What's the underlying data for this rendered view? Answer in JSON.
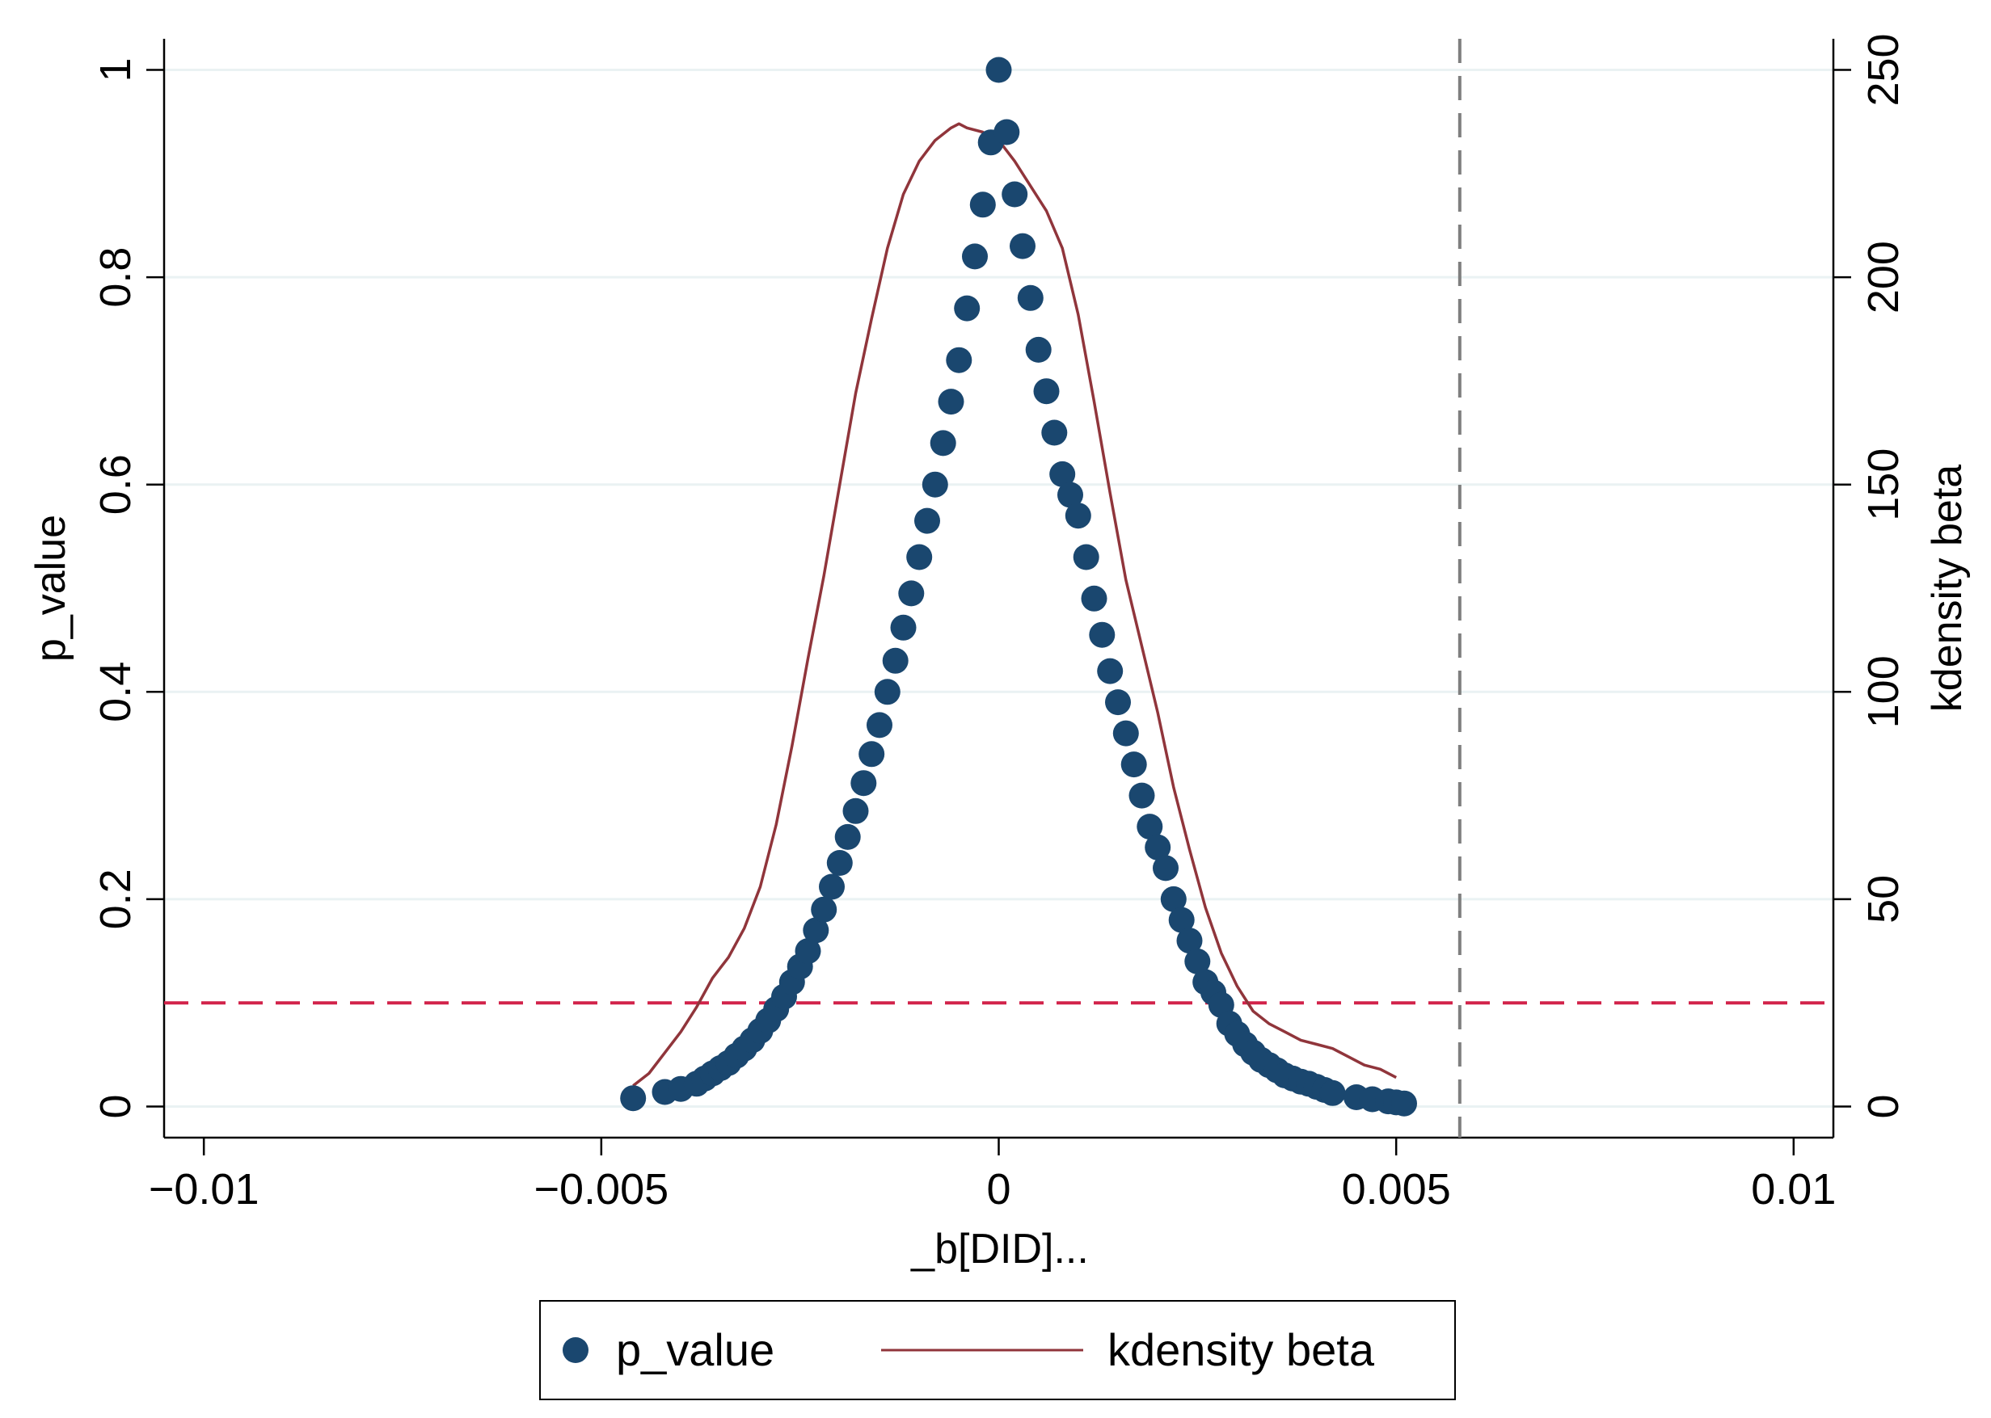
{
  "chart_data": {
    "type": "scatter",
    "title": "",
    "xlabel": "_b[DID]...",
    "ylabel_left": "p_value",
    "ylabel_right": "kdensity beta",
    "xlim": [
      -0.0105,
      0.0105
    ],
    "ylim_left": [
      -0.03,
      1.03
    ],
    "ylim_right": [
      -7.5,
      257.5
    ],
    "x_ticks": [
      -0.01,
      -0.005,
      0,
      0.005,
      0.01
    ],
    "x_tick_labels": [
      "−0.01",
      "−0.005",
      "0",
      "0.005",
      "0.01"
    ],
    "y_left_ticks": [
      0,
      0.2,
      0.4,
      0.6,
      0.8,
      1
    ],
    "y_left_tick_labels": [
      "0",
      "0.2",
      "0.4",
      "0.6",
      "0.8",
      "1"
    ],
    "y_right_ticks": [
      0,
      50,
      100,
      150,
      200,
      250
    ],
    "y_right_tick_labels": [
      "0",
      "50",
      "100",
      "150",
      "200",
      "250"
    ],
    "grid": true,
    "legend_position": "bottom-center",
    "colors": {
      "p_value": "#1a476f",
      "kdensity": "#90353b",
      "hline": "#d2234a",
      "vline": "#7f7f7f",
      "grid": "#eaf2f3"
    },
    "reference_lines": {
      "horizontal_p_value": 0.1,
      "vertical_x": 0.0058
    },
    "series": [
      {
        "name": "p_value",
        "kind": "scatter",
        "axis": "left",
        "points": [
          [
            -0.0046,
            0.008
          ],
          [
            -0.0042,
            0.014
          ],
          [
            -0.004,
            0.017
          ],
          [
            -0.0038,
            0.022
          ],
          [
            -0.0037,
            0.027
          ],
          [
            -0.0036,
            0.032
          ],
          [
            -0.0035,
            0.037
          ],
          [
            -0.0034,
            0.042
          ],
          [
            -0.0033,
            0.049
          ],
          [
            -0.0032,
            0.056
          ],
          [
            -0.0031,
            0.064
          ],
          [
            -0.003,
            0.073
          ],
          [
            -0.0029,
            0.083
          ],
          [
            -0.0028,
            0.094
          ],
          [
            -0.0027,
            0.106
          ],
          [
            -0.0026,
            0.12
          ],
          [
            -0.0025,
            0.135
          ],
          [
            -0.0024,
            0.15
          ],
          [
            -0.0023,
            0.17
          ],
          [
            -0.0022,
            0.19
          ],
          [
            -0.0021,
            0.212
          ],
          [
            -0.002,
            0.235
          ],
          [
            -0.0019,
            0.26
          ],
          [
            -0.0018,
            0.285
          ],
          [
            -0.0017,
            0.312
          ],
          [
            -0.0016,
            0.34
          ],
          [
            -0.0015,
            0.368
          ],
          [
            -0.0014,
            0.4
          ],
          [
            -0.0013,
            0.43
          ],
          [
            -0.0012,
            0.462
          ],
          [
            -0.0011,
            0.495
          ],
          [
            -0.001,
            0.53
          ],
          [
            -0.0009,
            0.565
          ],
          [
            -0.0008,
            0.6
          ],
          [
            -0.0007,
            0.64
          ],
          [
            -0.0006,
            0.68
          ],
          [
            -0.0005,
            0.72
          ],
          [
            -0.0004,
            0.77
          ],
          [
            -0.0003,
            0.82
          ],
          [
            -0.0002,
            0.87
          ],
          [
            -0.0001,
            0.93
          ],
          [
            0.0,
            1.0
          ],
          [
            0.0001,
            0.94
          ],
          [
            0.0002,
            0.88
          ],
          [
            0.0003,
            0.83
          ],
          [
            0.0004,
            0.78
          ],
          [
            0.0005,
            0.73
          ],
          [
            0.0006,
            0.69
          ],
          [
            0.0007,
            0.65
          ],
          [
            0.0008,
            0.61
          ],
          [
            0.0009,
            0.59
          ],
          [
            0.001,
            0.57
          ],
          [
            0.0011,
            0.53
          ],
          [
            0.0012,
            0.49
          ],
          [
            0.0013,
            0.455
          ],
          [
            0.0014,
            0.42
          ],
          [
            0.0015,
            0.39
          ],
          [
            0.0016,
            0.36
          ],
          [
            0.0017,
            0.33
          ],
          [
            0.0018,
            0.3
          ],
          [
            0.0019,
            0.27
          ],
          [
            0.002,
            0.25
          ],
          [
            0.0021,
            0.23
          ],
          [
            0.0022,
            0.2
          ],
          [
            0.0023,
            0.18
          ],
          [
            0.0024,
            0.16
          ],
          [
            0.0025,
            0.14
          ],
          [
            0.0026,
            0.12
          ],
          [
            0.0027,
            0.11
          ],
          [
            0.0028,
            0.098
          ],
          [
            0.0029,
            0.08
          ],
          [
            0.003,
            0.07
          ],
          [
            0.0031,
            0.06
          ],
          [
            0.0032,
            0.052
          ],
          [
            0.0033,
            0.045
          ],
          [
            0.0034,
            0.04
          ],
          [
            0.0035,
            0.035
          ],
          [
            0.0036,
            0.03
          ],
          [
            0.0037,
            0.027
          ],
          [
            0.0038,
            0.024
          ],
          [
            0.0039,
            0.022
          ],
          [
            0.004,
            0.019
          ],
          [
            0.0041,
            0.016
          ],
          [
            0.0042,
            0.013
          ],
          [
            0.0045,
            0.009
          ],
          [
            0.0047,
            0.007
          ],
          [
            0.0049,
            0.005
          ],
          [
            0.005,
            0.004
          ],
          [
            0.0051,
            0.003
          ]
        ]
      },
      {
        "name": "kdensity beta",
        "kind": "line",
        "axis": "right",
        "points": [
          [
            -0.0046,
            5
          ],
          [
            -0.0044,
            8
          ],
          [
            -0.0042,
            13
          ],
          [
            -0.004,
            18
          ],
          [
            -0.0038,
            24
          ],
          [
            -0.0036,
            31
          ],
          [
            -0.0034,
            36
          ],
          [
            -0.0032,
            43
          ],
          [
            -0.003,
            53
          ],
          [
            -0.0028,
            68
          ],
          [
            -0.0026,
            87
          ],
          [
            -0.0024,
            108
          ],
          [
            -0.0022,
            128
          ],
          [
            -0.002,
            150
          ],
          [
            -0.0018,
            172
          ],
          [
            -0.0016,
            190
          ],
          [
            -0.0014,
            207
          ],
          [
            -0.0012,
            220
          ],
          [
            -0.001,
            228
          ],
          [
            -0.0008,
            233
          ],
          [
            -0.0006,
            236
          ],
          [
            -0.0005,
            237
          ],
          [
            -0.0004,
            236
          ],
          [
            -0.0002,
            235
          ],
          [
            0.0,
            233
          ],
          [
            0.0002,
            228
          ],
          [
            0.0004,
            222
          ],
          [
            0.0006,
            216
          ],
          [
            0.0008,
            207
          ],
          [
            0.001,
            191
          ],
          [
            0.0012,
            170
          ],
          [
            0.0014,
            148
          ],
          [
            0.0016,
            127
          ],
          [
            0.0018,
            111
          ],
          [
            0.002,
            95
          ],
          [
            0.0022,
            77
          ],
          [
            0.0024,
            62
          ],
          [
            0.0026,
            48
          ],
          [
            0.0028,
            37
          ],
          [
            0.003,
            29
          ],
          [
            0.0032,
            23
          ],
          [
            0.0034,
            20
          ],
          [
            0.0036,
            18
          ],
          [
            0.0038,
            16
          ],
          [
            0.004,
            15
          ],
          [
            0.0042,
            14
          ],
          [
            0.0044,
            12
          ],
          [
            0.0046,
            10
          ],
          [
            0.0048,
            9
          ],
          [
            0.005,
            7
          ]
        ]
      }
    ]
  }
}
